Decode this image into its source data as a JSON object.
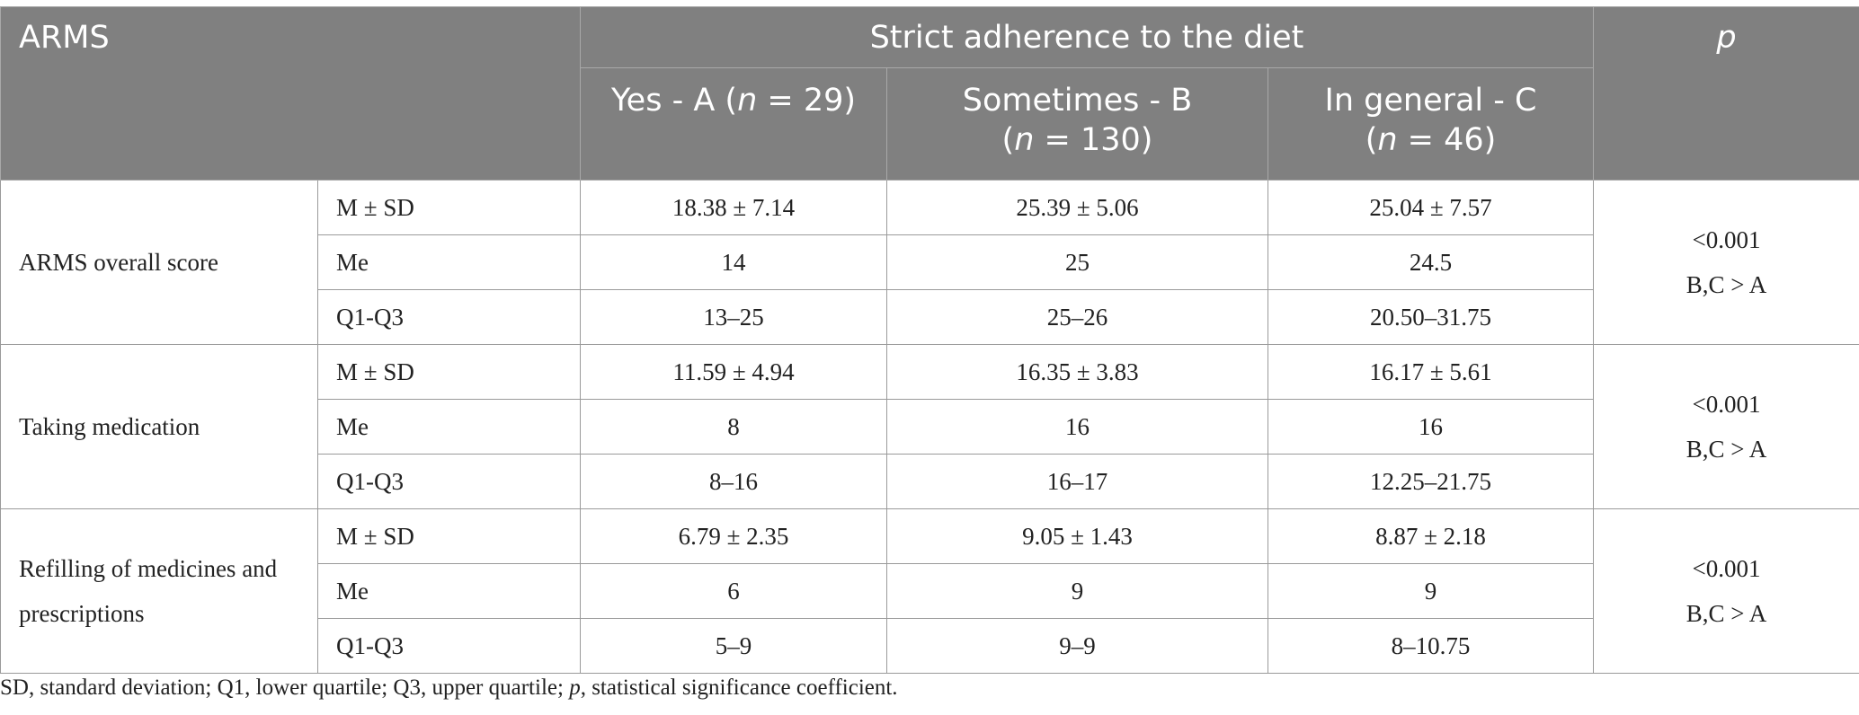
{
  "header": {
    "row_label": "ARMS",
    "group_title": "Strict adherence to the diet",
    "p_label": "p",
    "groups": [
      {
        "label": "Yes - A (",
        "n_sym": "n",
        "n_rest": " = 29)"
      },
      {
        "label": "Sometimes - B",
        "n_open": "(",
        "n_sym": "n",
        "n_rest": " = 130)"
      },
      {
        "label": "In general - C",
        "n_open": "(",
        "n_sym": "n",
        "n_rest": " = 46)"
      }
    ]
  },
  "sections": [
    {
      "category": "ARMS overall score",
      "rows": [
        {
          "stat": "M ± SD",
          "a": "18.38 ± 7.14",
          "b": "25.39 ± 5.06",
          "c": "25.04 ± 7.57"
        },
        {
          "stat": "Me",
          "a": "14",
          "b": "25",
          "c": "24.5"
        },
        {
          "stat": "Q1-Q3",
          "a": "13–25",
          "b": "25–26",
          "c": "20.50–31.75"
        }
      ],
      "p_value": "<0.001",
      "p_comparison": "B,C > A"
    },
    {
      "category": "Taking medication",
      "rows": [
        {
          "stat": "M ± SD",
          "a": "11.59 ± 4.94",
          "b": "16.35 ± 3.83",
          "c": "16.17 ± 5.61"
        },
        {
          "stat": "Me",
          "a": "8",
          "b": "16",
          "c": "16"
        },
        {
          "stat": "Q1-Q3",
          "a": "8–16",
          "b": "16–17",
          "c": "12.25–21.75"
        }
      ],
      "p_value": "<0.001",
      "p_comparison": "B,C > A"
    },
    {
      "category_line1": "Refilling of medicines and",
      "category_line2": "prescriptions",
      "rows": [
        {
          "stat": "M ± SD",
          "a": "6.79 ± 2.35",
          "b": "9.05 ± 1.43",
          "c": "8.87 ± 2.18"
        },
        {
          "stat": "Me",
          "a": "6",
          "b": "9",
          "c": "9"
        },
        {
          "stat": "Q1-Q3",
          "a": "5–9",
          "b": "9–9",
          "c": "8–10.75"
        }
      ],
      "p_value": "<0.001",
      "p_comparison": "B,C > A"
    }
  ],
  "footnote": {
    "part1": "SD, standard deviation; Q1, lower quartile; Q3, upper quartile; ",
    "p_sym": "p",
    "part2": ", statistical significance coefficient."
  }
}
